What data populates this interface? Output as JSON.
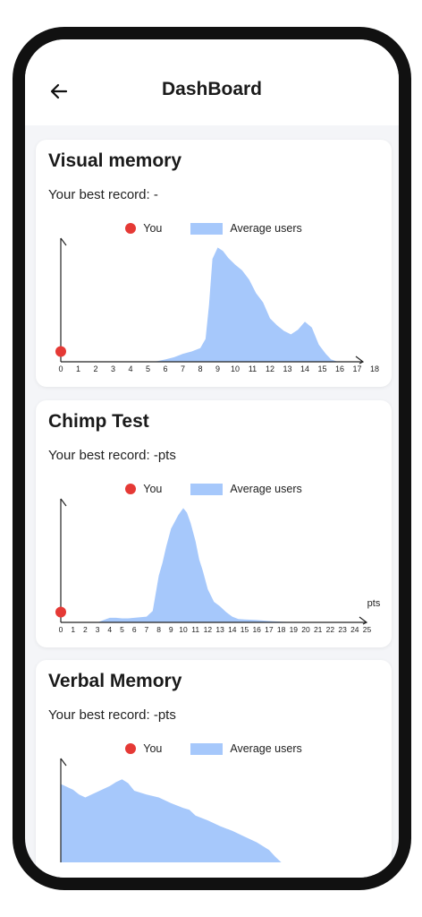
{
  "header": {
    "title": "DashBoard",
    "back_icon": "arrow-left-icon"
  },
  "colors": {
    "you": "#e53935",
    "average": "#a6c8fb",
    "axis": "#222222"
  },
  "legend": {
    "you": "You",
    "average": "Average users"
  },
  "cards": [
    {
      "title": "Visual memory",
      "best_record": "Your best record: -",
      "chart_data": {
        "type": "area",
        "x_ticks": [
          "0",
          "1",
          "2",
          "3",
          "4",
          "5",
          "6",
          "7",
          "8",
          "9",
          "10",
          "11",
          "12",
          "13",
          "14",
          "15",
          "16",
          "17",
          "18"
        ],
        "xlim": [
          0,
          18
        ],
        "x_unit_label": "",
        "you_point": {
          "x": 0,
          "value": 0.09
        },
        "series": [
          {
            "name": "Average users",
            "x": [
              0,
              5,
              5.5,
              6,
              6.5,
              7,
              7.5,
              8,
              8.3,
              8.5,
              8.7,
              9,
              9.3,
              9.6,
              10,
              10.4,
              10.8,
              11.2,
              11.6,
              12,
              12.4,
              12.8,
              13.2,
              13.6,
              14,
              14.4,
              14.8,
              15.2,
              15.5,
              15.8,
              16
            ],
            "y": [
              0,
              0,
              0.005,
              0.02,
              0.04,
              0.07,
              0.09,
              0.12,
              0.2,
              0.5,
              0.9,
              1.0,
              0.97,
              0.91,
              0.85,
              0.8,
              0.72,
              0.6,
              0.52,
              0.38,
              0.32,
              0.27,
              0.24,
              0.28,
              0.35,
              0.3,
              0.15,
              0.07,
              0.02,
              0.005,
              0
            ]
          }
        ],
        "ylim": [
          0,
          1.05
        ]
      }
    },
    {
      "title": "Chimp Test",
      "best_record": "Your best record: -pts",
      "chart_data": {
        "type": "area",
        "x_ticks": [
          "0",
          "1",
          "2",
          "3",
          "4",
          "5",
          "6",
          "7",
          "8",
          "9",
          "10",
          "11",
          "12",
          "13",
          "14",
          "15",
          "16",
          "17",
          "18",
          "19",
          "20",
          "21",
          "22",
          "23",
          "24",
          "25"
        ],
        "xlim": [
          0,
          25
        ],
        "x_unit_label": "pts",
        "you_point": {
          "x": 0,
          "value": 0.09
        },
        "series": [
          {
            "name": "Average users",
            "x": [
              0,
              3,
              3.5,
              4,
              4.5,
              5,
              5.5,
              6,
              6.5,
              7,
              7.5,
              8,
              8.3,
              8.6,
              9,
              9.3,
              9.6,
              10,
              10.3,
              10.6,
              11,
              11.3,
              11.6,
              12,
              12.5,
              13,
              13.5,
              14,
              14.5,
              15,
              16,
              17,
              18,
              19,
              20
            ],
            "y": [
              0,
              0,
              0.02,
              0.04,
              0.04,
              0.035,
              0.035,
              0.04,
              0.045,
              0.05,
              0.1,
              0.41,
              0.52,
              0.66,
              0.82,
              0.88,
              0.94,
              1.0,
              0.96,
              0.87,
              0.71,
              0.55,
              0.45,
              0.29,
              0.18,
              0.14,
              0.09,
              0.05,
              0.03,
              0.025,
              0.02,
              0.012,
              0.006,
              0.002,
              0
            ]
          }
        ],
        "ylim": [
          0,
          1.05
        ]
      }
    },
    {
      "title": "Verbal Memory",
      "best_record": "Your best record: -pts",
      "chart_data": {
        "type": "area",
        "x_ticks": [],
        "xlim": [
          0,
          25
        ],
        "x_unit_label": "",
        "you_point": null,
        "series": [
          {
            "name": "Average users",
            "x": [
              0,
              1,
              1.5,
              2,
              3,
              4,
              4.5,
              5,
              5.5,
              6,
              7,
              8,
              9,
              10,
              10.5,
              11,
              12,
              13,
              14,
              15,
              16,
              17,
              17.5,
              18
            ],
            "y": [
              0.82,
              0.76,
              0.71,
              0.68,
              0.74,
              0.8,
              0.84,
              0.87,
              0.83,
              0.75,
              0.71,
              0.68,
              0.62,
              0.57,
              0.55,
              0.49,
              0.44,
              0.38,
              0.33,
              0.27,
              0.21,
              0.13,
              0.06,
              0
            ]
          }
        ],
        "ylim": [
          0,
          1.05
        ]
      }
    }
  ]
}
